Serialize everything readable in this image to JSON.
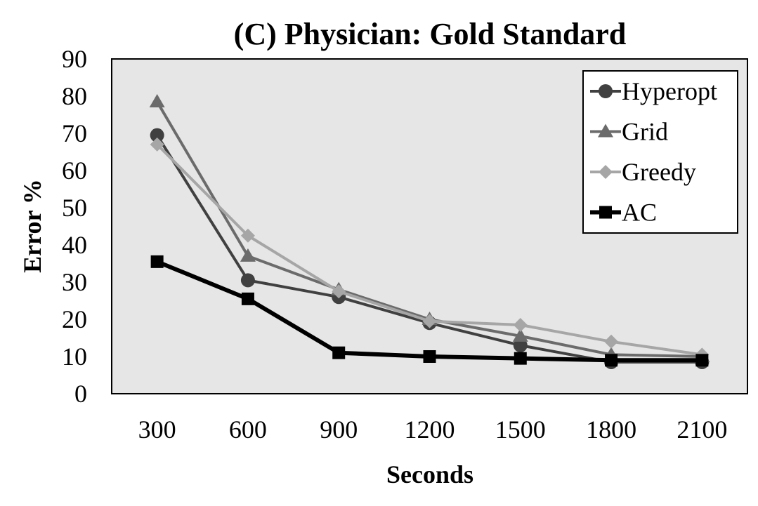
{
  "chart_data": {
    "type": "line",
    "title": "(C) Physician: Gold Standard",
    "xlabel": "Seconds",
    "ylabel": "Error %",
    "categories": [
      "300",
      "600",
      "900",
      "1200",
      "1500",
      "1800",
      "2100"
    ],
    "ylim": [
      0,
      90
    ],
    "yticks": [
      0,
      10,
      20,
      30,
      40,
      50,
      60,
      70,
      80,
      90
    ],
    "grid": false,
    "plot_background": "#e6e6e6",
    "legend_position": "top-right",
    "series": [
      {
        "name": "Hyperopt",
        "marker": "circle",
        "color": "#404040",
        "values": [
          69.5,
          30.5,
          26,
          19,
          13,
          8.5,
          8.5
        ]
      },
      {
        "name": "Grid",
        "marker": "triangle",
        "color": "#6b6b6b",
        "values": [
          78.5,
          37,
          28,
          20,
          15.5,
          10.5,
          10
        ]
      },
      {
        "name": "Greedy",
        "marker": "diamond",
        "color": "#a6a6a6",
        "values": [
          67,
          42.5,
          27.5,
          19.5,
          18.5,
          14,
          10.5
        ]
      },
      {
        "name": "AC",
        "marker": "square",
        "color": "#000000",
        "values": [
          35.5,
          25.5,
          11,
          10,
          9.5,
          9,
          9
        ]
      }
    ]
  }
}
